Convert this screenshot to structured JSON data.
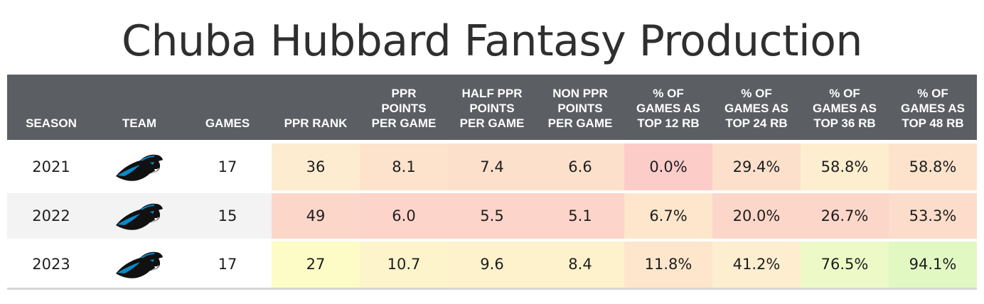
{
  "title": "Chuba Hubbard Fantasy Production",
  "chart_data": {
    "type": "table",
    "columns": [
      "SEASON",
      "TEAM",
      "GAMES",
      "PPR RANK",
      "PPR\nPOINTS\nPER GAME",
      "HALF PPR\nPOINTS\nPER GAME",
      "NON PPR\nPOINTS\nPER GAME",
      "% OF\nGAMES AS\nTOP 12 RB",
      "% OF\nGAMES AS\nTOP 24 RB",
      "% OF\nGAMES AS\nTOP 36 RB",
      "% OF\nGAMES AS\nTOP 48 RB"
    ],
    "rows": [
      {
        "season": "2021",
        "team_icon": "panthers-logo-icon",
        "games": "17",
        "cells": [
          {
            "value": "36",
            "color": "#fdecd0"
          },
          {
            "value": "8.1",
            "color": "#fde2cc"
          },
          {
            "value": "7.4",
            "color": "#fde0cb"
          },
          {
            "value": "6.6",
            "color": "#fde0cb"
          },
          {
            "value": "0.0%",
            "color": "#fcccc9"
          },
          {
            "value": "29.4%",
            "color": "#fde0cb"
          },
          {
            "value": "58.8%",
            "color": "#fdeecf"
          },
          {
            "value": "58.8%",
            "color": "#fde3cc"
          }
        ]
      },
      {
        "season": "2022",
        "team_icon": "panthers-logo-icon",
        "games": "15",
        "cells": [
          {
            "value": "49",
            "color": "#fcd6c9"
          },
          {
            "value": "6.0",
            "color": "#fcd4c9"
          },
          {
            "value": "5.5",
            "color": "#fcd4c9"
          },
          {
            "value": "5.1",
            "color": "#fcd4c9"
          },
          {
            "value": "6.7%",
            "color": "#fde6cc"
          },
          {
            "value": "20.0%",
            "color": "#fcd6c9"
          },
          {
            "value": "26.7%",
            "color": "#fcd6c9"
          },
          {
            "value": "53.3%",
            "color": "#fcdcca"
          }
        ]
      },
      {
        "season": "2023",
        "team_icon": "panthers-logo-icon",
        "games": "17",
        "cells": [
          {
            "value": "27",
            "color": "#fdfcc6"
          },
          {
            "value": "10.7",
            "color": "#fdf4cb"
          },
          {
            "value": "9.6",
            "color": "#fdf2cc"
          },
          {
            "value": "8.4",
            "color": "#fdf2cc"
          },
          {
            "value": "11.8%",
            "color": "#fde6cc"
          },
          {
            "value": "41.2%",
            "color": "#fdeecf"
          },
          {
            "value": "76.5%",
            "color": "#edfac7"
          },
          {
            "value": "94.1%",
            "color": "#e1f8c3"
          }
        ]
      }
    ]
  }
}
